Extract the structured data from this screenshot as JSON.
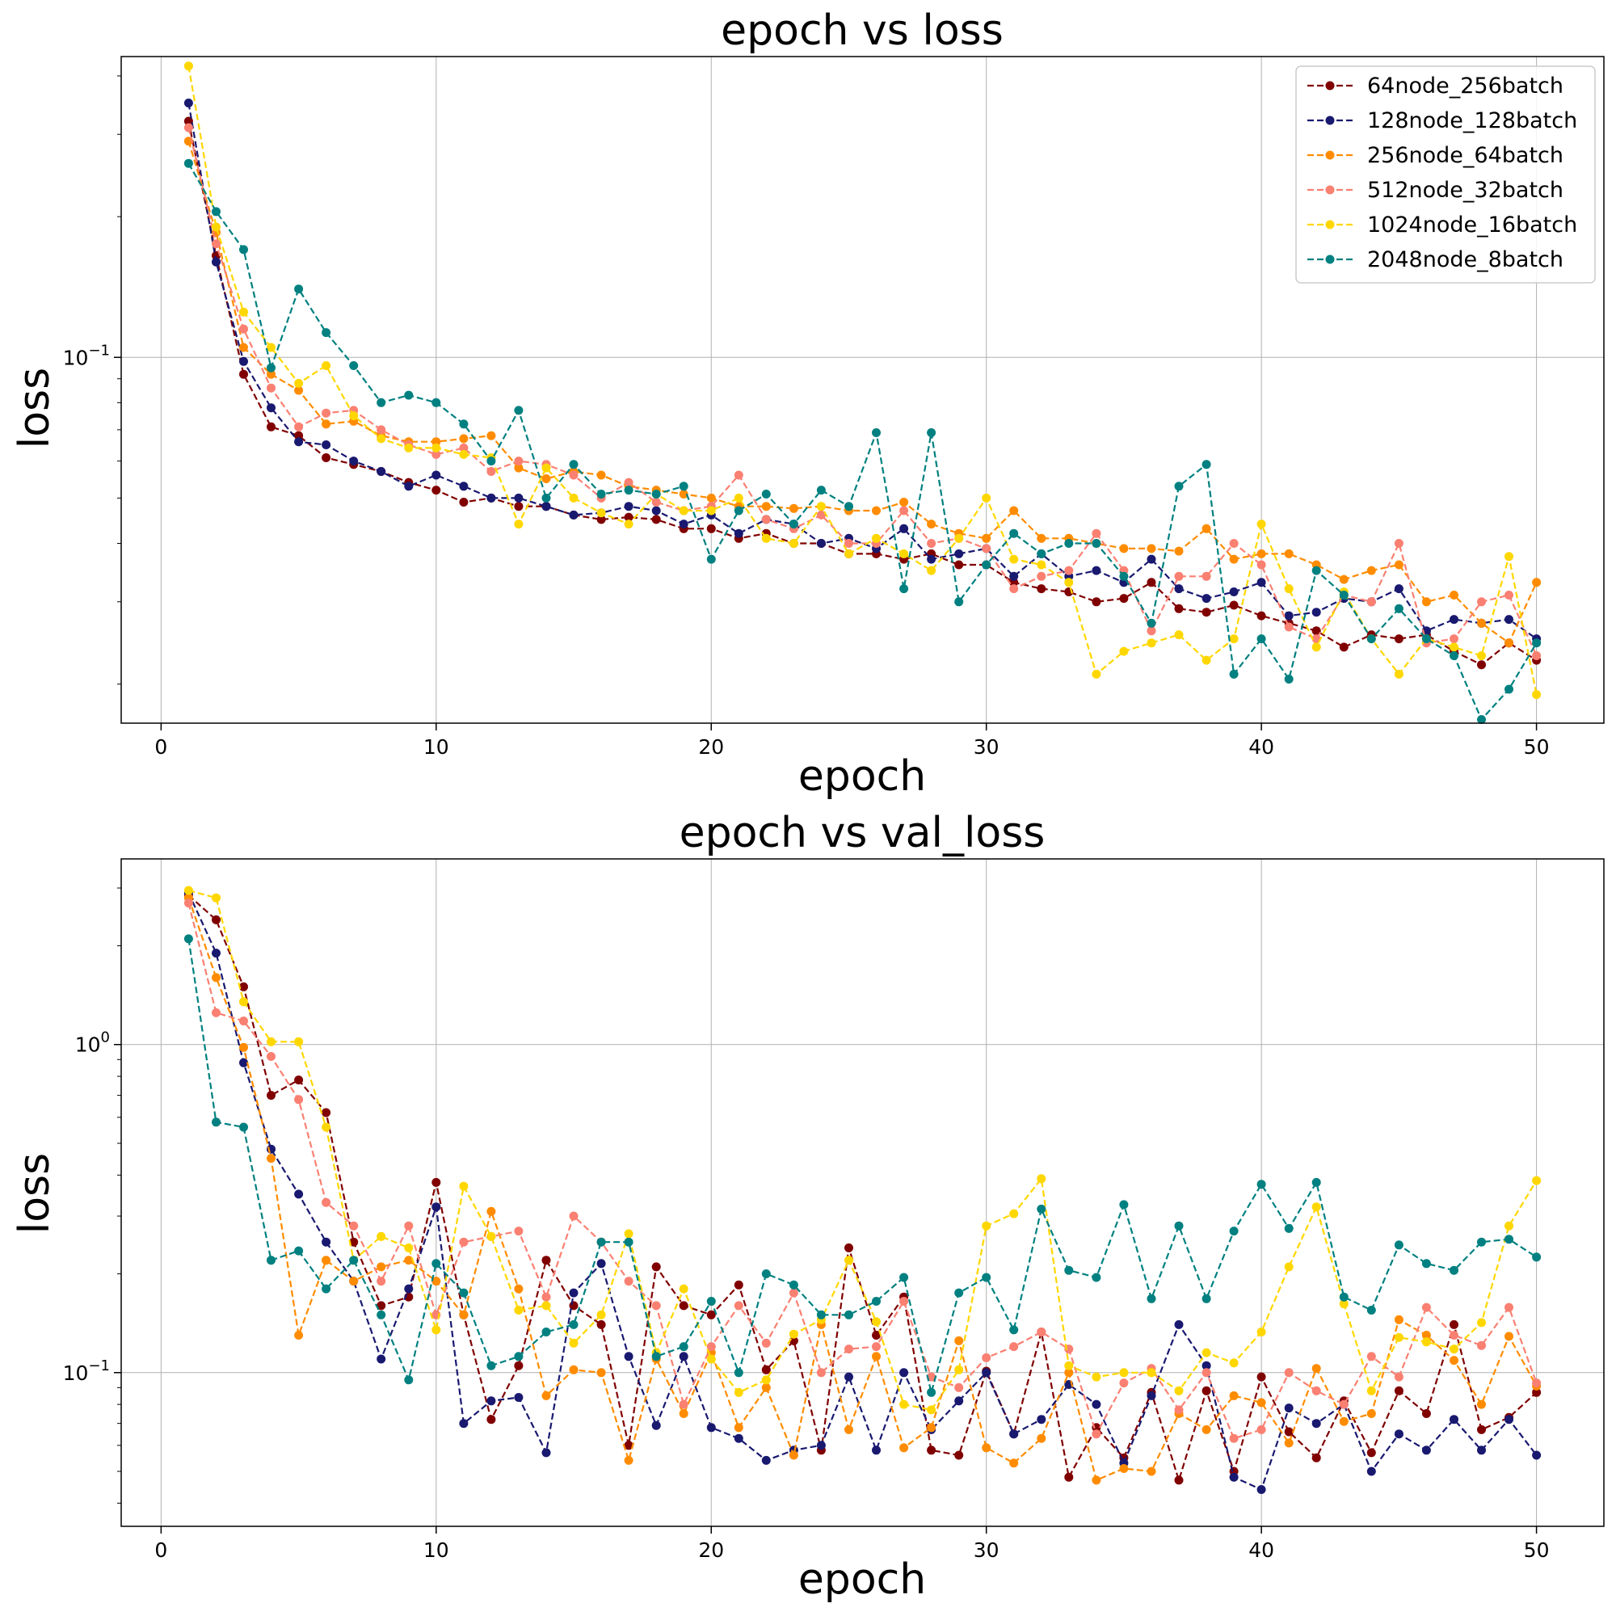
{
  "chart_data": [
    {
      "type": "line",
      "title": "epoch vs loss",
      "xlabel": "epoch",
      "ylabel": "loss",
      "yscale": "log",
      "xlim": [
        -1.45,
        52.45
      ],
      "ylim": [
        0.0165,
        0.44
      ],
      "xticks": [
        0,
        10,
        20,
        30,
        40,
        50
      ],
      "xtick_labels": [
        "0",
        "10",
        "20",
        "30",
        "40",
        "50"
      ],
      "yticks": [
        0.1
      ],
      "ytick_labels": [
        {
          "base": "10",
          "exp": "−1"
        }
      ],
      "grid": true,
      "legend_position": "upper right",
      "x": [
        1,
        2,
        3,
        4,
        5,
        6,
        7,
        8,
        9,
        10,
        11,
        12,
        13,
        14,
        15,
        16,
        17,
        18,
        19,
        20,
        21,
        22,
        23,
        24,
        25,
        26,
        27,
        28,
        29,
        30,
        31,
        32,
        33,
        34,
        35,
        36,
        37,
        38,
        39,
        40,
        41,
        42,
        43,
        44,
        45,
        46,
        47,
        48,
        49,
        50
      ],
      "series": [
        {
          "name": "64node_256batch",
          "color": "#800000",
          "values": [
            0.32,
            0.165,
            0.092,
            0.071,
            0.068,
            0.061,
            0.059,
            0.057,
            0.054,
            0.052,
            0.049,
            0.05,
            0.048,
            0.048,
            0.046,
            0.045,
            0.0455,
            0.045,
            0.043,
            0.043,
            0.041,
            0.042,
            0.04,
            0.04,
            0.038,
            0.038,
            0.037,
            0.038,
            0.036,
            0.036,
            0.033,
            0.032,
            0.0315,
            0.03,
            0.0305,
            0.033,
            0.029,
            0.0285,
            0.0295,
            0.028,
            0.027,
            0.026,
            0.024,
            0.0255,
            0.025,
            0.0255,
            0.0235,
            0.022,
            0.0245,
            0.0225
          ]
        },
        {
          "name": "128node_128batch",
          "color": "#191970",
          "values": [
            0.35,
            0.16,
            0.098,
            0.078,
            0.066,
            0.065,
            0.06,
            0.057,
            0.053,
            0.056,
            0.053,
            0.05,
            0.05,
            0.048,
            0.046,
            0.0465,
            0.048,
            0.047,
            0.044,
            0.046,
            0.042,
            0.045,
            0.044,
            0.04,
            0.041,
            0.039,
            0.043,
            0.037,
            0.038,
            0.039,
            0.034,
            0.038,
            0.034,
            0.035,
            0.033,
            0.037,
            0.032,
            0.0305,
            0.0315,
            0.033,
            0.028,
            0.0285,
            0.0305,
            0.03,
            0.032,
            0.026,
            0.0275,
            0.027,
            0.0275,
            0.025
          ]
        },
        {
          "name": "256node_64batch",
          "color": "#ff8c00",
          "values": [
            0.29,
            0.185,
            0.105,
            0.092,
            0.085,
            0.072,
            0.073,
            0.068,
            0.066,
            0.066,
            0.067,
            0.068,
            0.058,
            0.055,
            0.057,
            0.056,
            0.053,
            0.052,
            0.051,
            0.05,
            0.048,
            0.048,
            0.0475,
            0.048,
            0.047,
            0.047,
            0.049,
            0.044,
            0.042,
            0.041,
            0.047,
            0.041,
            0.041,
            0.04,
            0.039,
            0.039,
            0.0385,
            0.043,
            0.037,
            0.038,
            0.038,
            0.036,
            0.0335,
            0.035,
            0.036,
            0.03,
            0.031,
            0.027,
            0.0245,
            0.033
          ]
        },
        {
          "name": "512node_32batch",
          "color": "#fa8072",
          "values": [
            0.31,
            0.175,
            0.115,
            0.086,
            0.071,
            0.076,
            0.077,
            0.07,
            0.065,
            0.062,
            0.064,
            0.057,
            0.06,
            0.059,
            0.056,
            0.05,
            0.054,
            0.049,
            0.047,
            0.048,
            0.056,
            0.045,
            0.043,
            0.046,
            0.04,
            0.04,
            0.047,
            0.04,
            0.041,
            0.039,
            0.032,
            0.034,
            0.035,
            0.042,
            0.035,
            0.026,
            0.034,
            0.034,
            0.04,
            0.036,
            0.0265,
            0.025,
            0.031,
            0.03,
            0.04,
            0.0245,
            0.025,
            0.03,
            0.031,
            0.023
          ]
        },
        {
          "name": "1024node_16batch",
          "color": "#ffd700",
          "values": [
            0.42,
            0.19,
            0.125,
            0.105,
            0.088,
            0.096,
            0.075,
            0.067,
            0.064,
            0.064,
            0.062,
            0.061,
            0.044,
            0.058,
            0.05,
            0.0465,
            0.044,
            0.051,
            0.047,
            0.047,
            0.05,
            0.041,
            0.04,
            0.048,
            0.038,
            0.041,
            0.038,
            0.035,
            0.041,
            0.05,
            0.037,
            0.036,
            0.033,
            0.021,
            0.0235,
            0.0245,
            0.0255,
            0.0225,
            0.025,
            0.044,
            0.032,
            0.024,
            0.0315,
            0.025,
            0.021,
            0.025,
            0.024,
            0.023,
            0.0375,
            0.019
          ]
        },
        {
          "name": "2048node_8batch",
          "color": "#008080",
          "values": [
            0.26,
            0.205,
            0.17,
            0.095,
            0.14,
            0.113,
            0.096,
            0.08,
            0.083,
            0.08,
            0.072,
            0.06,
            0.077,
            0.05,
            0.059,
            0.051,
            0.052,
            0.051,
            0.053,
            0.037,
            0.047,
            0.051,
            0.044,
            0.052,
            0.048,
            0.069,
            0.032,
            0.069,
            0.03,
            0.036,
            0.042,
            0.038,
            0.04,
            0.04,
            0.034,
            0.027,
            0.053,
            0.059,
            0.021,
            0.025,
            0.0205,
            0.035,
            0.031,
            0.025,
            0.029,
            0.025,
            0.023,
            0.0168,
            0.0195,
            0.0245
          ]
        }
      ]
    },
    {
      "type": "line",
      "title": "epoch vs val_loss",
      "xlabel": "epoch",
      "ylabel": "loss",
      "yscale": "log",
      "xlim": [
        -1.45,
        52.45
      ],
      "ylim": [
        0.034,
        3.68
      ],
      "xticks": [
        0,
        10,
        20,
        30,
        40,
        50
      ],
      "xtick_labels": [
        "0",
        "10",
        "20",
        "30",
        "40",
        "50"
      ],
      "yticks": [
        0.1,
        1.0
      ],
      "ytick_labels": [
        {
          "base": "10",
          "exp": "−1"
        },
        {
          "base": "10",
          "exp": "0"
        }
      ],
      "grid": true,
      "x": [
        1,
        2,
        3,
        4,
        5,
        6,
        7,
        8,
        9,
        10,
        11,
        12,
        13,
        14,
        15,
        16,
        17,
        18,
        19,
        20,
        21,
        22,
        23,
        24,
        25,
        26,
        27,
        28,
        29,
        30,
        31,
        32,
        33,
        34,
        35,
        36,
        37,
        38,
        39,
        40,
        41,
        42,
        43,
        44,
        45,
        46,
        47,
        48,
        49,
        50
      ],
      "series": [
        {
          "name": "64node_256batch",
          "color": "#800000",
          "values": [
            2.85,
            2.4,
            1.5,
            0.7,
            0.78,
            0.62,
            0.25,
            0.16,
            0.17,
            0.38,
            0.15,
            0.072,
            0.105,
            0.22,
            0.16,
            0.14,
            0.06,
            0.21,
            0.16,
            0.15,
            0.185,
            0.102,
            0.125,
            0.058,
            0.24,
            0.13,
            0.17,
            0.058,
            0.056,
            0.101,
            0.065,
            0.133,
            0.048,
            0.068,
            0.055,
            0.087,
            0.047,
            0.088,
            0.05,
            0.097,
            0.066,
            0.055,
            0.082,
            0.057,
            0.088,
            0.075,
            0.14,
            0.067,
            0.073,
            0.087
          ]
        },
        {
          "name": "128node_128batch",
          "color": "#191970",
          "values": [
            2.9,
            1.9,
            0.88,
            0.48,
            0.35,
            0.25,
            0.19,
            0.11,
            0.18,
            0.32,
            0.07,
            0.082,
            0.084,
            0.057,
            0.175,
            0.215,
            0.112,
            0.069,
            0.112,
            0.068,
            0.063,
            0.054,
            0.058,
            0.06,
            0.097,
            0.058,
            0.1,
            0.067,
            0.082,
            0.1,
            0.065,
            0.072,
            0.092,
            0.08,
            0.053,
            0.085,
            0.14,
            0.105,
            0.048,
            0.044,
            0.078,
            0.07,
            0.08,
            0.05,
            0.065,
            0.058,
            0.072,
            0.058,
            0.072,
            0.056
          ]
        },
        {
          "name": "256node_64batch",
          "color": "#ff8c00",
          "values": [
            2.8,
            1.6,
            0.98,
            0.45,
            0.13,
            0.22,
            0.19,
            0.21,
            0.22,
            0.19,
            0.15,
            0.31,
            0.18,
            0.085,
            0.102,
            0.1,
            0.054,
            0.11,
            0.075,
            0.115,
            0.068,
            0.09,
            0.056,
            0.14,
            0.067,
            0.112,
            0.059,
            0.068,
            0.125,
            0.059,
            0.053,
            0.063,
            0.1,
            0.047,
            0.051,
            0.05,
            0.075,
            0.067,
            0.085,
            0.081,
            0.061,
            0.103,
            0.071,
            0.075,
            0.145,
            0.13,
            0.109,
            0.08,
            0.129,
            0.091
          ]
        },
        {
          "name": "512node_32batch",
          "color": "#fa8072",
          "values": [
            2.7,
            1.25,
            1.18,
            0.92,
            0.68,
            0.33,
            0.28,
            0.19,
            0.28,
            0.15,
            0.25,
            0.26,
            0.27,
            0.17,
            0.3,
            0.25,
            0.19,
            0.16,
            0.08,
            0.12,
            0.16,
            0.123,
            0.175,
            0.1,
            0.118,
            0.12,
            0.165,
            0.097,
            0.09,
            0.111,
            0.12,
            0.133,
            0.118,
            0.065,
            0.093,
            0.103,
            0.077,
            0.1,
            0.063,
            0.067,
            0.1,
            0.088,
            0.08,
            0.112,
            0.097,
            0.158,
            0.13,
            0.121,
            0.158,
            0.093
          ]
        },
        {
          "name": "1024node_16batch",
          "color": "#ffd700",
          "values": [
            2.95,
            2.8,
            1.35,
            1.02,
            1.02,
            0.56,
            0.22,
            0.26,
            0.24,
            0.135,
            0.37,
            0.26,
            0.155,
            0.16,
            0.123,
            0.15,
            0.265,
            0.115,
            0.18,
            0.11,
            0.087,
            0.095,
            0.131,
            0.145,
            0.22,
            0.143,
            0.08,
            0.077,
            0.102,
            0.28,
            0.305,
            0.39,
            0.105,
            0.097,
            0.1,
            0.1,
            0.088,
            0.115,
            0.107,
            0.133,
            0.21,
            0.32,
            0.162,
            0.088,
            0.128,
            0.124,
            0.118,
            0.142,
            0.28,
            0.385
          ]
        },
        {
          "name": "2048node_8batch",
          "color": "#008080",
          "values": [
            2.1,
            0.58,
            0.56,
            0.22,
            0.235,
            0.18,
            0.22,
            0.15,
            0.095,
            0.215,
            0.175,
            0.105,
            0.112,
            0.133,
            0.14,
            0.25,
            0.25,
            0.112,
            0.12,
            0.165,
            0.1,
            0.2,
            0.185,
            0.15,
            0.15,
            0.165,
            0.195,
            0.087,
            0.175,
            0.195,
            0.135,
            0.315,
            0.205,
            0.195,
            0.325,
            0.168,
            0.28,
            0.168,
            0.27,
            0.375,
            0.275,
            0.38,
            0.17,
            0.155,
            0.245,
            0.215,
            0.205,
            0.25,
            0.255,
            0.225
          ]
        }
      ]
    }
  ]
}
